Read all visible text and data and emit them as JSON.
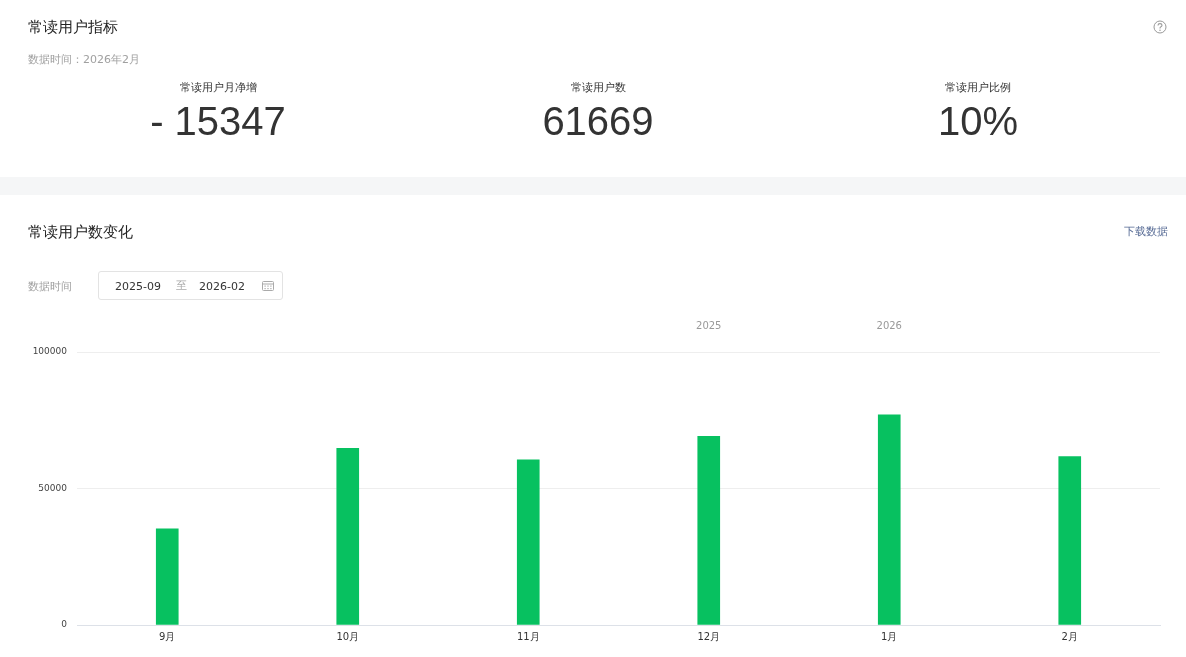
{
  "chart_data": [
    {
      "type": "other",
      "title": "常读用户指标",
      "subtitle": "数据时间：2026年2月",
      "annotations": [
        "常读用户月净增",
        "- 15347",
        "常读用户数",
        "61669",
        "常读用户比例",
        "10%"
      ]
    },
    {
      "type": "bar",
      "title": "常读用户数变化",
      "categories": [
        "9月",
        "10月",
        "11月",
        "12月",
        "1月",
        "2月"
      ],
      "values": [
        35200,
        64700,
        60500,
        69100,
        77000,
        61700
      ],
      "color": "#07c160",
      "ylim": [
        0,
        100000
      ],
      "yticks": [
        0,
        50000,
        100000
      ],
      "grid": "y",
      "annotations": [
        "下载数据",
        "数据时间",
        "2025-09",
        "至",
        "2026-02",
        "2025",
        "2026"
      ]
    }
  ]
}
